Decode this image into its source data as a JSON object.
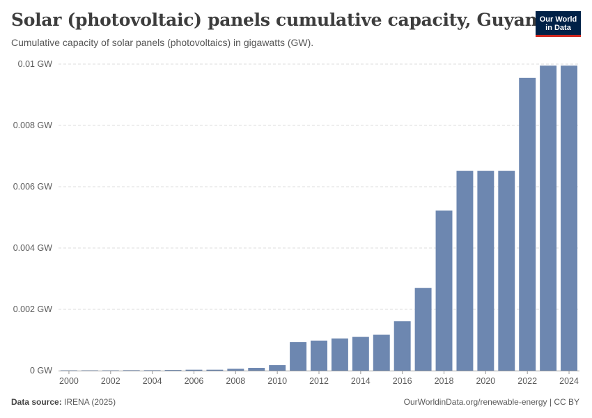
{
  "header": {
    "title": "Solar (photovoltaic) panels cumulative capacity, Guyana",
    "subtitle": "Cumulative capacity of solar panels (photovoltaics) in gigawatts (GW)."
  },
  "logo": {
    "line1": "Our World",
    "line2": "in Data"
  },
  "footer": {
    "source_label": "Data source:",
    "source_value": "IRENA (2025)",
    "right": "OurWorldinData.org/renewable-energy | CC BY"
  },
  "colors": {
    "bar": "#6d87b0",
    "grid": "#dddddd",
    "axis": "#999999",
    "text": "#5b5b5b"
  },
  "chart_data": {
    "type": "bar",
    "title": "Solar (photovoltaic) panels cumulative capacity, Guyana",
    "ylabel": "GW",
    "xlabel": "",
    "ylim": [
      0,
      0.01
    ],
    "categories": [
      2000,
      2001,
      2002,
      2003,
      2004,
      2005,
      2006,
      2007,
      2008,
      2009,
      2010,
      2011,
      2012,
      2013,
      2014,
      2015,
      2016,
      2017,
      2018,
      2019,
      2020,
      2021,
      2022,
      2023,
      2024
    ],
    "values": [
      0,
      0,
      0,
      1e-05,
      1e-05,
      2e-05,
      3e-05,
      3e-05,
      6e-05,
      9e-05,
      0.00018,
      0.00093,
      0.00098,
      0.00105,
      0.0011,
      0.00117,
      0.00161,
      0.0027,
      0.00522,
      0.00652,
      0.00652,
      0.00652,
      0.00955,
      0.00995,
      0.00995
    ],
    "y_ticks": [
      {
        "value": 0,
        "label": "0 GW"
      },
      {
        "value": 0.002,
        "label": "0.002 GW"
      },
      {
        "value": 0.004,
        "label": "0.004 GW"
      },
      {
        "value": 0.006,
        "label": "0.006 GW"
      },
      {
        "value": 0.008,
        "label": "0.008 GW"
      },
      {
        "value": 0.01,
        "label": "0.01 GW"
      }
    ],
    "x_tick_labels": [
      "2000",
      "2002",
      "2004",
      "2006",
      "2008",
      "2010",
      "2012",
      "2014",
      "2016",
      "2018",
      "2020",
      "2022",
      "2024"
    ]
  }
}
